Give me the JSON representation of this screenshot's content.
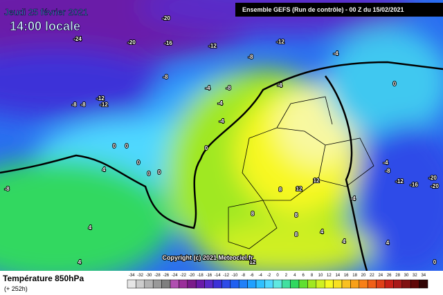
{
  "header": {
    "date": "Jeudi 25 février 2021",
    "time": "14:00 locale",
    "run": "Ensemble GEFS  (Run de contrôle) - 00 Z du 15/02/2021"
  },
  "map": {
    "copyright": "Copyright (c) 2021 Meteociel.fr",
    "contour_labels": [
      "-20",
      "-24",
      "-20",
      "-16",
      "-12",
      "-8",
      "-12",
      "-4",
      "-8",
      "-4",
      "-8",
      "-4",
      "0",
      "-12",
      "-8",
      "-8",
      "-12",
      "-4",
      "-4",
      "0",
      "0",
      "0",
      "0",
      "0",
      "0",
      "4",
      "-8",
      "4",
      "4",
      "8",
      "12",
      "12",
      "8",
      "8",
      "8",
      "4",
      "4",
      "-4",
      "-8",
      "-12",
      "-16",
      "-20",
      "-20",
      "4",
      "12",
      "0",
      "-4"
    ]
  },
  "footer": {
    "title": "Température 850hPa",
    "lead": "(+ 252h)"
  },
  "scale": {
    "labels": [
      "-34",
      "-32",
      "-30",
      "-28",
      "-26",
      "-24",
      "-22",
      "-20",
      "-18",
      "-16",
      "-14",
      "-12",
      "-10",
      "-8",
      "-6",
      "-4",
      "-2",
      "0",
      "2",
      "4",
      "6",
      "8",
      "10",
      "12",
      "14",
      "16",
      "18",
      "20",
      "22",
      "24",
      "26",
      "28",
      "30",
      "32",
      "34"
    ],
    "colors": [
      "#e6e6e6",
      "#cccccc",
      "#b3b3b3",
      "#999999",
      "#7f7f7f",
      "#b04fb0",
      "#9a2e9a",
      "#7a1a8a",
      "#6a1aa8",
      "#5a2ac8",
      "#3c30d8",
      "#2e4be8",
      "#2060f0",
      "#2080f8",
      "#20a0ff",
      "#30c0ff",
      "#50d8ff",
      "#60e8e0",
      "#40e0a0",
      "#30d860",
      "#60e030",
      "#a0e820",
      "#d0f020",
      "#f8f820",
      "#f8e020",
      "#f8c020",
      "#f8a018",
      "#f88018",
      "#f06018",
      "#e04018",
      "#c82018",
      "#a81818",
      "#801010",
      "#600808",
      "#300404"
    ]
  }
}
